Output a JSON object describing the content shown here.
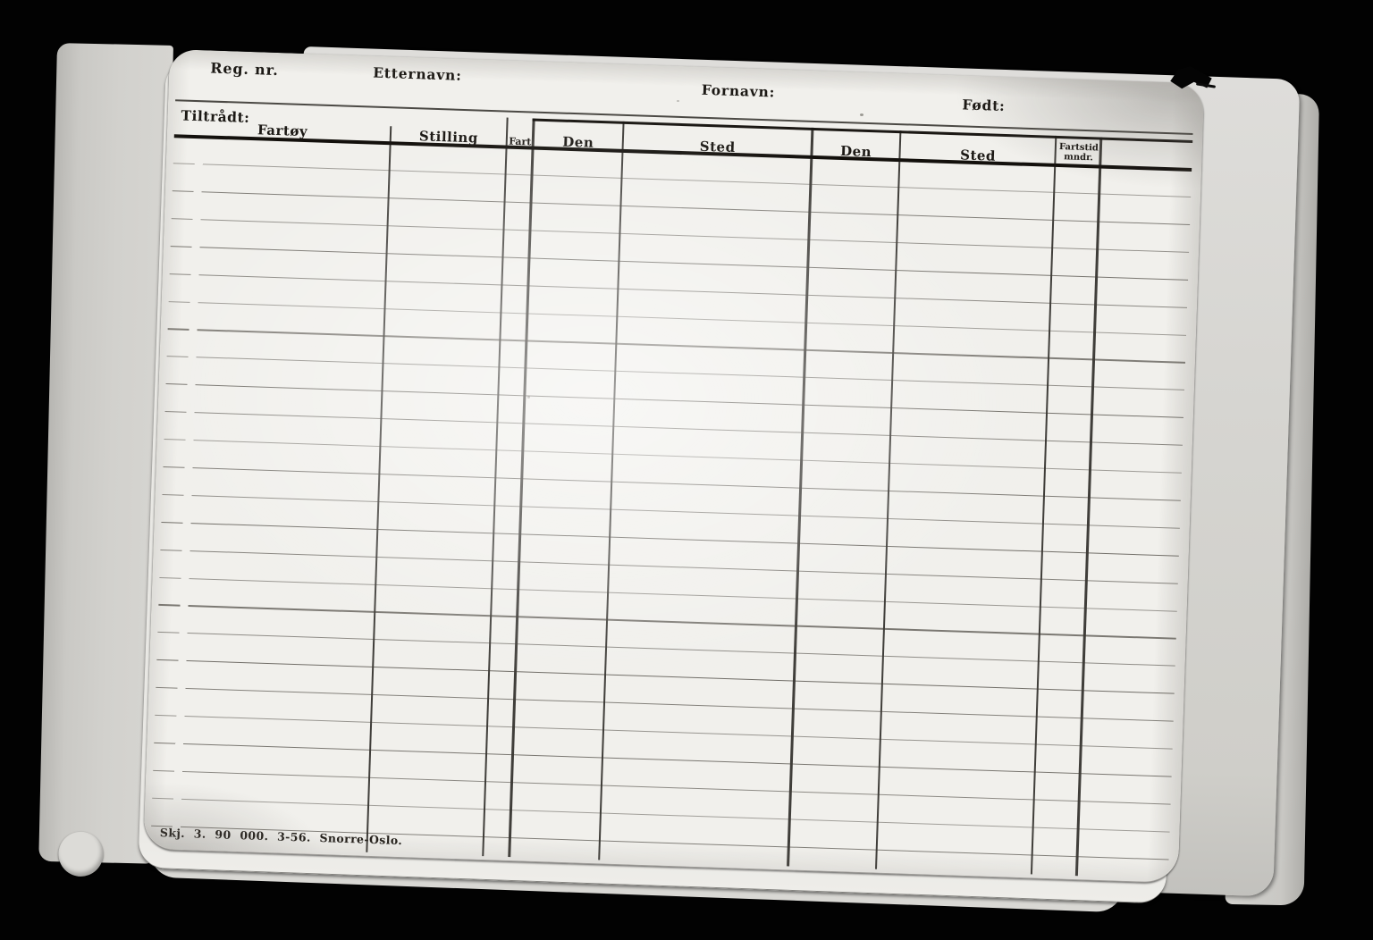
{
  "card": {
    "header": {
      "reg_nr": "Reg. nr.",
      "etternavn": "Etternavn:",
      "fornavn": "Fornavn:",
      "fodt": "Født:"
    },
    "section_label": "Tiltrådt:",
    "table": {
      "columns": [
        "Fartøy",
        "Stilling",
        "Fart",
        "Den",
        "Sted",
        "Den",
        "Sted"
      ],
      "fartstid_line1": "Fartstid",
      "fartstid_line2": "mndr.",
      "row_count": 25,
      "rows_empty": true
    },
    "footer": "Skj. 3. 90 000. 3-56. Snorre-Oslo."
  },
  "colors": {
    "background": "#020202",
    "card": "#f1f0ec",
    "pages_behind": "#d3d2ce",
    "ink_heavy": "#13100c",
    "ink_ruled": "#3e3a33"
  }
}
